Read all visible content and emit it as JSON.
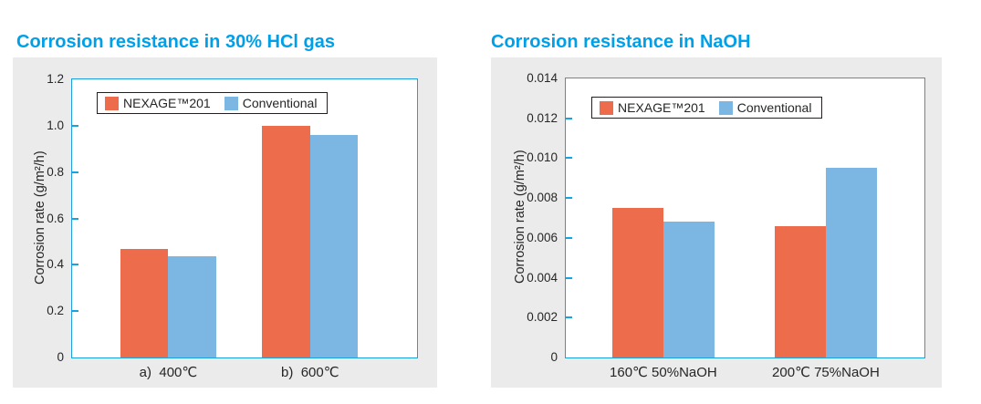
{
  "colors": {
    "title_accent": "#00a0e9",
    "axis": "#1ba2de",
    "panel_background": "#eaebea",
    "nexage_orange": "#ec6c4b",
    "conventional_blue": "#7cb7e3"
  },
  "chart_data": [
    {
      "type": "bar",
      "title": "Corrosion resistance in 30% HCl gas",
      "ylabel": "Corrosion rate (g/m²/h)",
      "xlabel": "",
      "categories": [
        "a)  400℃",
        "b)  600℃"
      ],
      "series": [
        {
          "name": "NEXAGE™201",
          "color": "#ec6c4b",
          "values": [
            0.47,
            1.0
          ]
        },
        {
          "name": "Conventional",
          "color": "#7cb7e3",
          "values": [
            0.435,
            0.96
          ]
        }
      ],
      "ylim": [
        0,
        1.2
      ],
      "ytick_labels": [
        "0",
        "0.2",
        "0.4",
        "0.6",
        "0.8",
        "1.0",
        "1.2"
      ],
      "legend_position": "top-left",
      "grid": false
    },
    {
      "type": "bar",
      "title": "Corrosion resistance in NaOH",
      "ylabel": "Corrosion rate (g/m²/h)",
      "xlabel": "",
      "categories": [
        "160℃ 50%NaOH",
        "200℃ 75%NaOH"
      ],
      "series": [
        {
          "name": "NEXAGE™201",
          "color": "#ec6c4b",
          "values": [
            0.0075,
            0.0066
          ]
        },
        {
          "name": "Conventional",
          "color": "#7cb7e3",
          "values": [
            0.0068,
            0.0095
          ]
        }
      ],
      "ylim": [
        0,
        0.014
      ],
      "ytick_labels": [
        "0",
        "0.002",
        "0.004",
        "0.006",
        "0.008",
        "0.010",
        "0.012",
        "0.014"
      ],
      "legend_position": "top-left",
      "grid": false
    }
  ]
}
